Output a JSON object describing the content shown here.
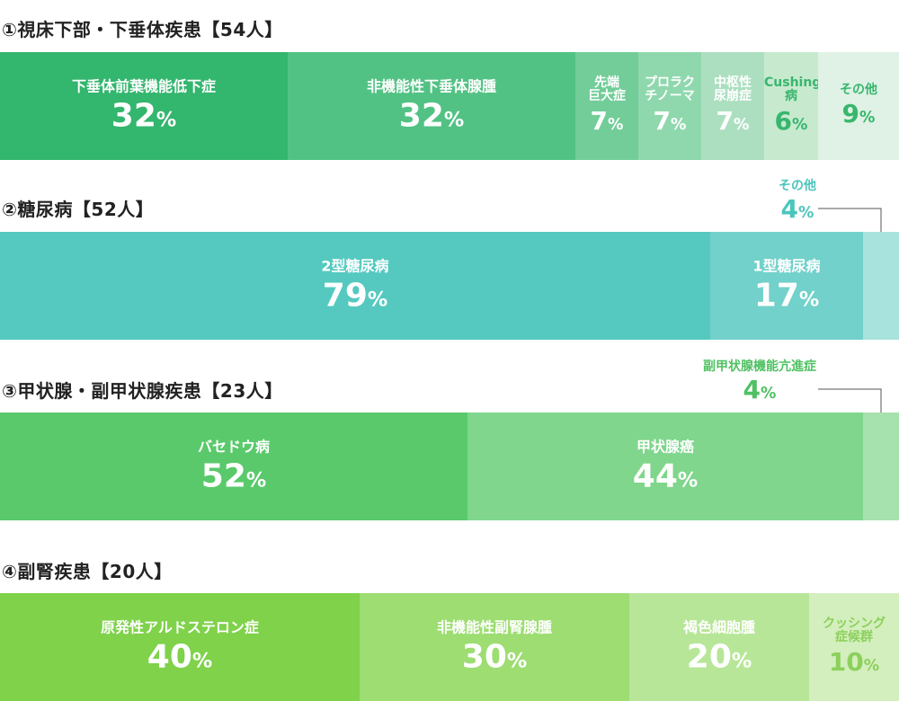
{
  "colors": {
    "text_white": "#ffffff",
    "title": "#222222",
    "leader": "#555555"
  },
  "chart_data": [
    {
      "type": "bar",
      "title": "①視床下部・下垂体疾患【54人】",
      "segments": [
        {
          "label": "下垂体前葉機能低下症",
          "value": 32,
          "unit": "%",
          "color": "#33b66e",
          "text_color": "#ffffff"
        },
        {
          "label": "非機能性下垂体腺腫",
          "value": 32,
          "unit": "%",
          "color": "#52c284",
          "text_color": "#ffffff"
        },
        {
          "label": "先端\n巨大症",
          "value": 7,
          "unit": "%",
          "color": "#72cd98",
          "text_color": "#ffffff"
        },
        {
          "label": "プロラク\nチノーマ",
          "value": 7,
          "unit": "%",
          "color": "#8fd8ad",
          "text_color": "#ffffff"
        },
        {
          "label": "中枢性\n尿崩症",
          "value": 7,
          "unit": "%",
          "color": "#acdfc0",
          "text_color": "#ffffff"
        },
        {
          "label": "Cushing病",
          "value": 6,
          "unit": "%",
          "color": "#c7eacf",
          "text_color": "#38b66d"
        },
        {
          "label": "その他",
          "value": 9,
          "unit": "%",
          "color": "#dff2e5",
          "text_color": "#38b66d"
        }
      ]
    },
    {
      "type": "bar",
      "title": "②糖尿病【52人】",
      "segments": [
        {
          "label": "2型糖尿病",
          "value": 79,
          "unit": "%",
          "color": "#55c9c0",
          "text_color": "#ffffff"
        },
        {
          "label": "1型糖尿病",
          "value": 17,
          "unit": "%",
          "color": "#72d1ca",
          "text_color": "#ffffff"
        },
        {
          "label": "その他",
          "value": 4,
          "unit": "%",
          "color": "#a9e3de",
          "text_color": "#4cc6bc",
          "callout": true
        }
      ]
    },
    {
      "type": "bar",
      "title": "③甲状腺・副甲状腺疾患【23人】",
      "segments": [
        {
          "label": "バセドウ病",
          "value": 52,
          "unit": "%",
          "color": "#5ac96b",
          "text_color": "#ffffff"
        },
        {
          "label": "甲状腺癌",
          "value": 44,
          "unit": "%",
          "color": "#7fd68c",
          "text_color": "#ffffff"
        },
        {
          "label": "副甲状腺機能亢進症",
          "value": 4,
          "unit": "%",
          "color": "#a6e2ad",
          "text_color": "#4fc162",
          "callout": true
        }
      ]
    },
    {
      "type": "bar",
      "title": "④副腎疾患【20人】",
      "segments": [
        {
          "label": "原発性アルドステロン症",
          "value": 40,
          "unit": "%",
          "color": "#7fd24a",
          "text_color": "#ffffff"
        },
        {
          "label": "非機能性副腎腺腫",
          "value": 30,
          "unit": "%",
          "color": "#9ddd72",
          "text_color": "#ffffff"
        },
        {
          "label": "褐色細胞腫",
          "value": 20,
          "unit": "%",
          "color": "#b8e699",
          "text_color": "#ffffff"
        },
        {
          "label": "クッシング\n症候群",
          "value": 10,
          "unit": "%",
          "color": "#d3efbd",
          "text_color": "#8cd05c"
        }
      ]
    }
  ]
}
